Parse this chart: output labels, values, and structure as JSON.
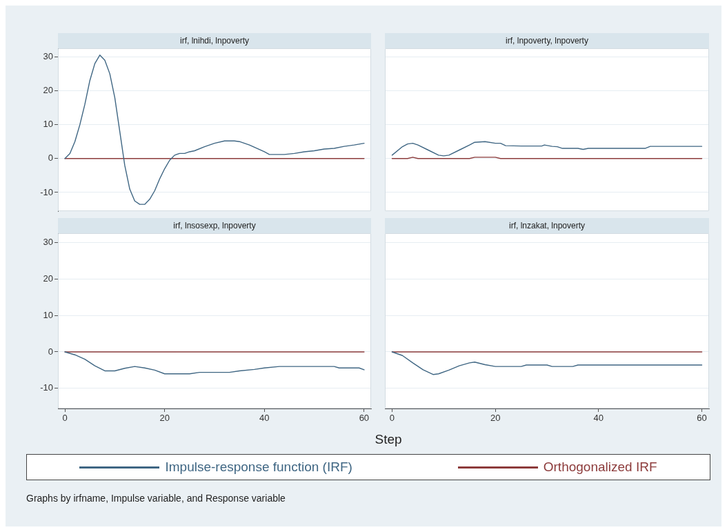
{
  "chart_data": [
    {
      "type": "line",
      "title": "irf, lnihdi, lnpoverty",
      "xlim": [
        -1.4,
        61.4
      ],
      "ylim": [
        -15.5,
        32.5
      ],
      "xticks": [
        0,
        20,
        40,
        60
      ],
      "yticks": [
        -10,
        0,
        10,
        20,
        30
      ],
      "tick_labels": "y",
      "grid": "y",
      "marker": "none",
      "series": [
        {
          "color": "#3f6683",
          "x": [
            0,
            1,
            2,
            3,
            4,
            5,
            6,
            7,
            8,
            9,
            10,
            11,
            12,
            13,
            14,
            15,
            16,
            17,
            18,
            19,
            20,
            21,
            22,
            23,
            24,
            25,
            26,
            28,
            30,
            32,
            34,
            35,
            37,
            40,
            41,
            44,
            46,
            48,
            50,
            52,
            54,
            56,
            58,
            60
          ],
          "values": [
            0,
            1.5,
            5,
            10,
            16,
            23,
            28,
            30.5,
            29,
            25,
            18,
            8,
            -2,
            -9,
            -12.5,
            -13.5,
            -13.5,
            -12,
            -9.5,
            -6,
            -3,
            -0.5,
            1,
            1.5,
            1.5,
            2,
            2.3,
            3.5,
            4.5,
            5.2,
            5.2,
            5,
            4,
            2,
            1.2,
            1.2,
            1.5,
            2,
            2.3,
            2.8,
            3,
            3.6,
            4,
            4.5
          ]
        },
        {
          "color": "#8c3b3b",
          "x": [
            0,
            60
          ],
          "values": [
            0,
            0
          ]
        }
      ]
    },
    {
      "type": "line",
      "title": "irf, lnpoverty, lnpoverty",
      "xlim": [
        -1.4,
        61.4
      ],
      "ylim": [
        -15.5,
        32.5
      ],
      "xticks": [
        0,
        20,
        40,
        60
      ],
      "yticks": [
        -10,
        0,
        10,
        20,
        30
      ],
      "tick_labels": false,
      "grid": "y",
      "marker": "none",
      "series": [
        {
          "color": "#3f6683",
          "x": [
            0,
            2,
            3,
            4,
            5,
            7,
            9,
            10,
            11,
            13,
            15,
            16,
            18,
            20,
            21,
            22,
            25,
            29,
            29.5,
            31,
            32,
            33,
            36,
            37,
            38,
            49,
            50,
            60
          ],
          "values": [
            1,
            3.5,
            4.3,
            4.5,
            4,
            2.5,
            1,
            0.8,
            1,
            2.5,
            4,
            4.8,
            5,
            4.5,
            4.5,
            3.8,
            3.7,
            3.7,
            4,
            3.6,
            3.5,
            3,
            3,
            2.7,
            3,
            3,
            3.6,
            3.6
          ]
        },
        {
          "color": "#8c3b3b",
          "x": [
            0,
            3,
            4,
            5,
            15,
            16,
            20,
            21,
            60
          ],
          "values": [
            0,
            0,
            0.4,
            0,
            0,
            0.4,
            0.4,
            0,
            0
          ]
        }
      ]
    },
    {
      "type": "line",
      "title": "irf, lnsosexp, lnpoverty",
      "xlim": [
        -1.4,
        61.4
      ],
      "ylim": [
        -15.5,
        32.5
      ],
      "xticks": [
        0,
        20,
        40,
        60
      ],
      "yticks": [
        -10,
        0,
        10,
        20,
        30
      ],
      "grid": "y",
      "marker": "none",
      "series": [
        {
          "color": "#3f6683",
          "x": [
            0,
            2,
            4,
            6,
            8,
            10,
            12,
            14,
            16,
            18,
            20,
            25,
            27,
            33,
            35,
            38,
            40,
            43,
            54,
            55,
            59,
            60
          ],
          "values": [
            0,
            -0.8,
            -2,
            -3.8,
            -5.2,
            -5.2,
            -4.5,
            -4,
            -4.4,
            -5,
            -6,
            -6,
            -5.6,
            -5.6,
            -5.2,
            -4.8,
            -4.4,
            -4,
            -4,
            -4.4,
            -4.4,
            -4.9
          ]
        },
        {
          "color": "#8c3b3b",
          "x": [
            0,
            60
          ],
          "values": [
            0,
            0
          ]
        }
      ]
    },
    {
      "type": "line",
      "title": "irf, lnzakat, lnpoverty",
      "xlim": [
        -1.4,
        61.4
      ],
      "ylim": [
        -15.5,
        32.5
      ],
      "xticks": [
        0,
        20,
        40,
        60
      ],
      "yticks": [
        -10,
        0,
        10,
        20,
        30
      ],
      "tick_labels": "x",
      "grid": "y",
      "marker": "none",
      "xlabel": "Step",
      "legend": "bottom",
      "annotations": [
        "Graphs by irfname, Impulse variable, and Response variable"
      ],
      "series": [
        {
          "name": "Impulse-response function (IRF)",
          "color": "#3f6683",
          "x": [
            0,
            2,
            4,
            6,
            8,
            9,
            11,
            13,
            15,
            16,
            18,
            20,
            25,
            26,
            30,
            31,
            35,
            36,
            60
          ],
          "values": [
            0,
            -1,
            -3,
            -4.9,
            -6.2,
            -6,
            -5,
            -3.8,
            -3,
            -2.8,
            -3.5,
            -4,
            -4,
            -3.6,
            -3.6,
            -4,
            -4,
            -3.6,
            -3.6
          ]
        },
        {
          "name": "Orthogonalized IRF",
          "color": "#8c3b3b",
          "x": [
            0,
            60
          ],
          "values": [
            0,
            0
          ]
        }
      ]
    }
  ]
}
